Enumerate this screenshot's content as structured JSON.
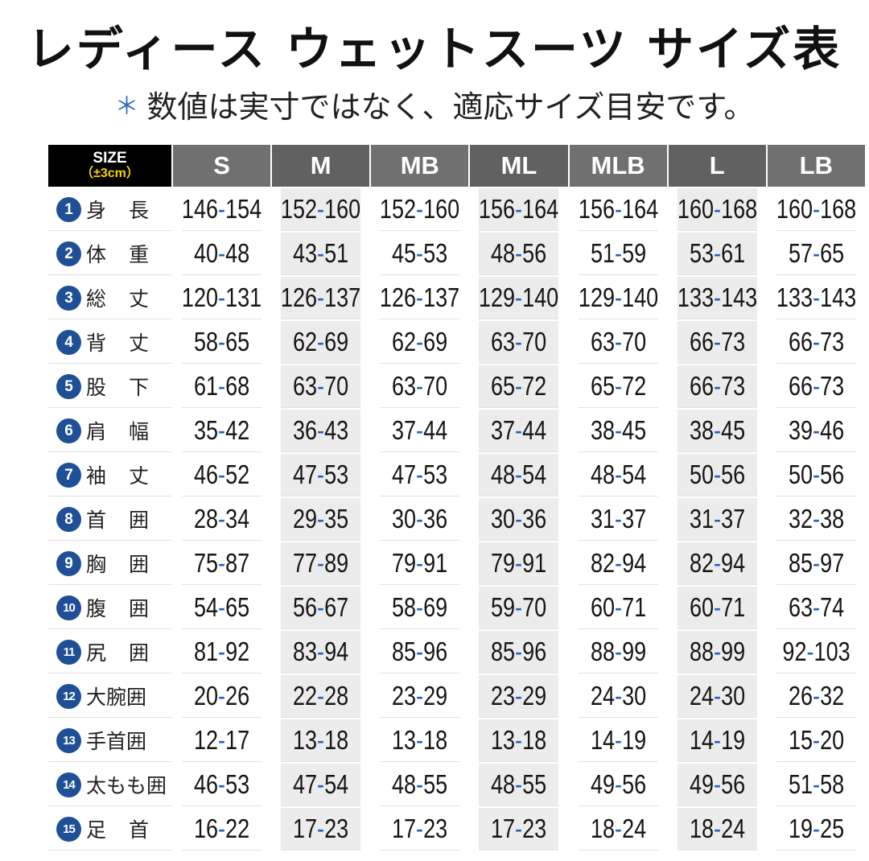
{
  "title": "レディース ウェットスーツ サイズ表",
  "note": {
    "mark": "＊",
    "text": "数値は実寸ではなく、適応サイズ目安です。"
  },
  "table": {
    "corner": {
      "line1": "SIZE",
      "line2": "（±3cm）"
    },
    "columns": [
      "S",
      "M",
      "MB",
      "ML",
      "MLB",
      "L",
      "LB"
    ],
    "rows": [
      {
        "no": "1",
        "label": "身長",
        "values": [
          "146-154",
          "152-160",
          "152-160",
          "156-164",
          "156-164",
          "160-168",
          "160-168"
        ]
      },
      {
        "no": "2",
        "label": "体重",
        "values": [
          "40-48",
          "43-51",
          "45-53",
          "48-56",
          "51-59",
          "53-61",
          "57-65"
        ]
      },
      {
        "no": "3",
        "label": "総丈",
        "values": [
          "120-131",
          "126-137",
          "126-137",
          "129-140",
          "129-140",
          "133-143",
          "133-143"
        ]
      },
      {
        "no": "4",
        "label": "背丈",
        "values": [
          "58-65",
          "62-69",
          "62-69",
          "63-70",
          "63-70",
          "66-73",
          "66-73"
        ]
      },
      {
        "no": "5",
        "label": "股下",
        "values": [
          "61-68",
          "63-70",
          "63-70",
          "65-72",
          "65-72",
          "66-73",
          "66-73"
        ]
      },
      {
        "no": "6",
        "label": "肩幅",
        "values": [
          "35-42",
          "36-43",
          "37-44",
          "37-44",
          "38-45",
          "38-45",
          "39-46"
        ]
      },
      {
        "no": "7",
        "label": "袖丈",
        "values": [
          "46-52",
          "47-53",
          "47-53",
          "48-54",
          "48-54",
          "50-56",
          "50-56"
        ]
      },
      {
        "no": "8",
        "label": "首囲",
        "values": [
          "28-34",
          "29-35",
          "30-36",
          "30-36",
          "31-37",
          "31-37",
          "32-38"
        ]
      },
      {
        "no": "9",
        "label": "胸囲",
        "values": [
          "75-87",
          "77-89",
          "79-91",
          "79-91",
          "82-94",
          "82-94",
          "85-97"
        ]
      },
      {
        "no": "10",
        "label": "腹囲",
        "values": [
          "54-65",
          "56-67",
          "58-69",
          "59-70",
          "60-71",
          "60-71",
          "63-74"
        ]
      },
      {
        "no": "11",
        "label": "尻囲",
        "values": [
          "81-92",
          "83-94",
          "85-96",
          "85-96",
          "88-99",
          "88-99",
          "92-103"
        ]
      },
      {
        "no": "12",
        "label": "大腕囲",
        "values": [
          "20-26",
          "22-28",
          "23-29",
          "23-29",
          "24-30",
          "24-30",
          "26-32"
        ]
      },
      {
        "no": "13",
        "label": "手首囲",
        "values": [
          "12-17",
          "13-18",
          "13-18",
          "13-18",
          "14-19",
          "14-19",
          "15-20"
        ]
      },
      {
        "no": "14",
        "label": "太もも囲",
        "values": [
          "46-53",
          "47-54",
          "48-55",
          "48-55",
          "49-56",
          "49-56",
          "51-58"
        ]
      },
      {
        "no": "15",
        "label": "足首",
        "values": [
          "16-22",
          "17-23",
          "17-23",
          "17-23",
          "18-24",
          "18-24",
          "19-25"
        ]
      }
    ]
  },
  "colors": {
    "header_bg": "#707070",
    "corner_bg": "#000000",
    "number_badge": "#1f4f96",
    "dash_accent": "#1f5fbf",
    "alt_column_bg": "#ececec"
  }
}
